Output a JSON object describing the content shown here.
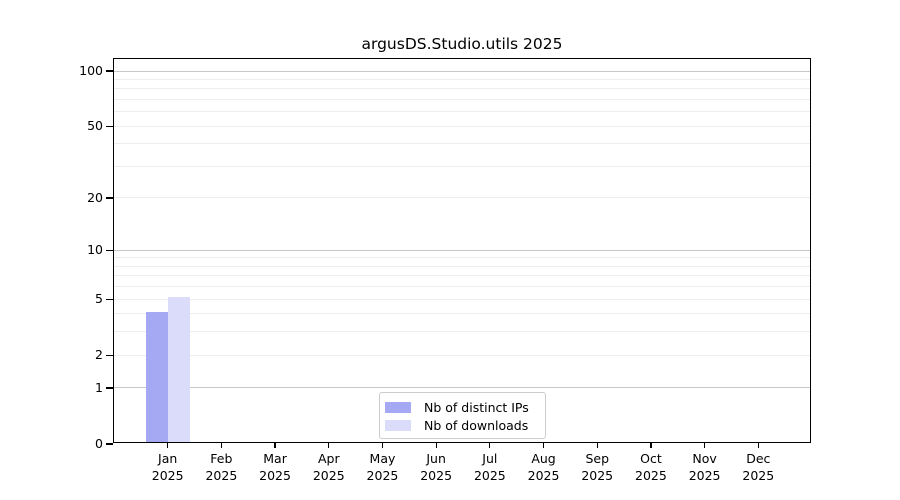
{
  "chart_data": {
    "type": "bar",
    "title": "argusDS.Studio.utils 2025",
    "year_label": "2025",
    "categories": [
      "Jan",
      "Feb",
      "Mar",
      "Apr",
      "May",
      "Jun",
      "Jul",
      "Aug",
      "Sep",
      "Oct",
      "Nov",
      "Dec"
    ],
    "series": [
      {
        "name": "Nb of distinct IPs",
        "color": "#a5a8f2",
        "values": [
          4,
          0,
          0,
          0,
          0,
          0,
          0,
          0,
          0,
          0,
          0,
          0
        ]
      },
      {
        "name": "Nb of downloads",
        "color": "#dadcf9",
        "values": [
          5,
          0,
          0,
          0,
          0,
          0,
          0,
          0,
          0,
          0,
          0,
          0
        ]
      }
    ],
    "xlabel": "",
    "ylabel": "",
    "y_axis": {
      "scale": "log10(1+x)",
      "ticks": [
        0,
        1,
        2,
        5,
        10,
        20,
        50,
        100
      ],
      "range": [
        0,
        116
      ]
    },
    "gridlines": {
      "major": [
        1,
        10,
        100
      ],
      "minor": [
        2,
        3,
        4,
        5,
        6,
        7,
        8,
        9,
        20,
        30,
        40,
        50,
        60,
        70,
        80,
        90
      ],
      "major_color": "#c8c8c8",
      "minor_color": "#eeeeee"
    },
    "legend": {
      "position": "lower center",
      "entries": [
        "Nb of distinct IPs",
        "Nb of downloads"
      ]
    }
  }
}
